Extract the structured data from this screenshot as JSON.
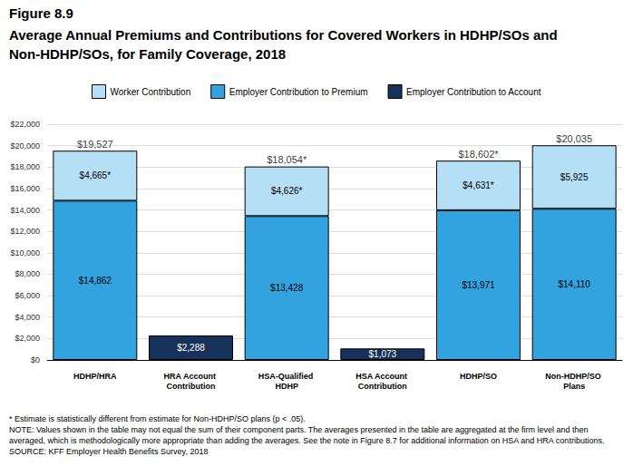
{
  "chart_data": {
    "type": "bar",
    "figure_label": "Figure 8.9",
    "title": "Average Annual Premiums and Contributions for Covered Workers in HDHP/SOs and Non-HDHP/SOs, for Family Coverage, 2018",
    "categories": [
      "HDHP/HRA",
      "HRA Account Contribution",
      "HSA-Qualified HDHP",
      "HSA Account Contribution",
      "HDHP/SO",
      "Non-HDHP/SO Plans"
    ],
    "series": [
      {
        "name": "Worker Contribution",
        "color": "#b5dff5",
        "values": [
          4665,
          null,
          4626,
          null,
          4631,
          5925
        ],
        "value_labels": [
          "$4,665*",
          null,
          "$4,626*",
          null,
          "$4,631*",
          "$5,925"
        ]
      },
      {
        "name": "Employer Contribution to Premium",
        "color": "#33a3e0",
        "values": [
          14862,
          null,
          13428,
          null,
          13971,
          14110
        ],
        "value_labels": [
          "$14,862",
          null,
          "$13,428",
          null,
          "$13,971",
          "$14,110"
        ]
      },
      {
        "name": "Employer Contribution to Account",
        "color": "#17325a",
        "values": [
          null,
          2288,
          null,
          1073,
          null,
          null
        ],
        "value_labels": [
          null,
          "$2,288",
          null,
          "$1,073",
          null,
          null
        ]
      }
    ],
    "totals": [
      19527,
      null,
      18054,
      null,
      18602,
      20035
    ],
    "total_labels": [
      "$19,527",
      null,
      "$18,054*",
      null,
      "$18,602*",
      "$20,035"
    ],
    "ylim": [
      0,
      22000
    ],
    "yticks": [
      {
        "value": 0,
        "label": "$0"
      },
      {
        "value": 2000,
        "label": "$2,000"
      },
      {
        "value": 4000,
        "label": "$4,000"
      },
      {
        "value": 6000,
        "label": "$6,000"
      },
      {
        "value": 8000,
        "label": "$8,000"
      },
      {
        "value": 10000,
        "label": "$10,000"
      },
      {
        "value": 12000,
        "label": "$12,000"
      },
      {
        "value": 14000,
        "label": "$14,000"
      },
      {
        "value": 16000,
        "label": "$16,000"
      },
      {
        "value": 18000,
        "label": "$18,000"
      },
      {
        "value": 20000,
        "label": "$20,000"
      },
      {
        "value": 22000,
        "label": "$22,000"
      }
    ],
    "grid": true,
    "stacked": true,
    "data_labels": true,
    "legend": "top",
    "notes": [
      "* Estimate is statistically different from estimate for Non-HDHP/SO plans (p < .05).",
      "NOTE: Values shown in the table may not equal the sum of their component parts. The averages presented in the table are aggregated at the firm level and then averaged, which is methodologically more appropriate than adding the averages. See the note in Figure 8.7 for additional information on HSA and HRA contributions.",
      "SOURCE: KFF Employer Health Benefits Survey, 2018"
    ]
  }
}
